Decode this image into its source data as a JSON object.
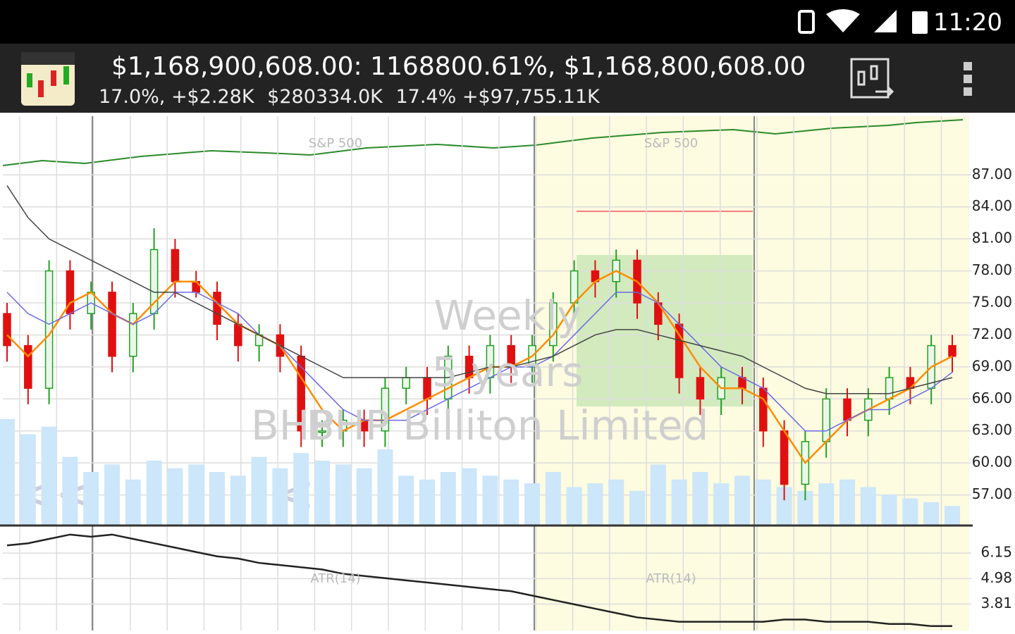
{
  "status_bar": {
    "time": "11:20"
  },
  "header": {
    "title": "$1,168,900,608.00: 1168800.61%, $1,168,800,608.00",
    "stats": [
      "17.0%, +$2.28K",
      "$280334.0K",
      "17.4% +$97,755.11K"
    ]
  },
  "chart_data": [
    {
      "type": "candlestick",
      "annotations": [
        "Weekly",
        "5 years",
        "BHP",
        "BHP Billiton Limited",
        "S&P 500"
      ],
      "open": [
        74,
        71,
        67,
        78,
        74,
        76,
        70,
        74,
        80,
        77,
        76,
        73,
        71,
        72,
        70,
        63,
        63,
        64,
        63,
        67,
        68,
        66,
        70,
        68,
        71,
        69,
        71,
        75,
        78,
        77,
        79,
        75,
        73,
        68,
        66,
        68,
        67,
        63,
        58,
        62,
        66,
        64,
        66,
        68,
        67,
        71
      ],
      "high": [
        75,
        72,
        79,
        79,
        77,
        77,
        75,
        82,
        81,
        78,
        77,
        74,
        73,
        73,
        71,
        64,
        65,
        65,
        68,
        69,
        69,
        71,
        71,
        72,
        72,
        72,
        76,
        79,
        79,
        80,
        80,
        76,
        74,
        69,
        69,
        69,
        68,
        64,
        63,
        67,
        67,
        67,
        69,
        69,
        72,
        72
      ],
      "low": [
        69.5,
        65.5,
        65.5,
        72.5,
        72.5,
        68.5,
        68.5,
        72.5,
        75.5,
        75.5,
        71.5,
        69.5,
        69.5,
        68.5,
        61.5,
        61.5,
        61.5,
        61.5,
        61.5,
        65.5,
        64.5,
        64.5,
        66.5,
        66.5,
        67.5,
        67.5,
        69.5,
        73.5,
        75.5,
        75.5,
        73.5,
        71.5,
        66.5,
        64.5,
        64.5,
        65.5,
        61.5,
        56.5,
        56.5,
        60.5,
        62.5,
        62.5,
        64.5,
        65.5,
        65.5,
        68.5
      ],
      "close": [
        71,
        67,
        78,
        74,
        76,
        70,
        74,
        80,
        77,
        76,
        73,
        71,
        72,
        70,
        63,
        63,
        64,
        63,
        67,
        68,
        66,
        70,
        68,
        71,
        69,
        71,
        75,
        78,
        77,
        79,
        75,
        73,
        68,
        66,
        68,
        67,
        63,
        58,
        62,
        66,
        64,
        66,
        68,
        67,
        71,
        70
      ],
      "volume": [
        140,
        120,
        130,
        90,
        70,
        80,
        60,
        85,
        75,
        80,
        70,
        65,
        90,
        75,
        95,
        85,
        80,
        75,
        100,
        65,
        60,
        70,
        75,
        65,
        60,
        55,
        70,
        50,
        55,
        60,
        45,
        80,
        60,
        70,
        55,
        65,
        60,
        50,
        45,
        55,
        60,
        50,
        40,
        35,
        30,
        25
      ],
      "series": [
        {
          "color": "#ff8c00",
          "values": [
            72,
            70,
            72,
            75,
            76,
            74,
            73,
            75,
            77,
            77,
            75,
            73,
            72,
            71,
            68,
            65,
            63,
            64,
            64,
            65,
            66,
            67,
            68,
            69,
            69,
            70,
            72,
            75,
            77,
            78,
            77,
            75,
            72,
            69,
            67,
            67,
            66,
            63,
            60,
            62,
            64,
            65,
            66,
            67,
            69,
            70
          ]
        },
        {
          "color": "#6a6ae8",
          "values": [
            76,
            74,
            73,
            74,
            75,
            74,
            73,
            74,
            76,
            76,
            75,
            74,
            72,
            71,
            69,
            67,
            65,
            64,
            64,
            64,
            65,
            66,
            67,
            68,
            69,
            69,
            70,
            72,
            74,
            76,
            76,
            75,
            73,
            71,
            69,
            68,
            67,
            65,
            63,
            63,
            64,
            65,
            65,
            66,
            67,
            68.5
          ]
        },
        {
          "color": "#444444",
          "values": [
            86,
            83,
            81,
            80,
            79,
            78,
            77,
            76,
            76,
            75,
            74,
            73,
            72,
            71,
            70,
            69,
            68,
            68,
            68,
            68,
            68,
            68,
            68.5,
            69,
            69,
            69.5,
            70,
            71,
            72,
            72.5,
            72.5,
            72,
            71.5,
            71,
            70.5,
            70,
            69,
            68,
            67,
            66.5,
            66.5,
            66.5,
            66.5,
            67,
            67.5,
            68
          ]
        }
      ],
      "up_color": "#22a022",
      "down_color": "#e01010",
      "ylim": [
        54.2,
        92.5
      ],
      "yticks": [
        {
          "value": 87,
          "label": "87.00"
        },
        {
          "value": 84,
          "label": "84.00"
        },
        {
          "value": 81,
          "label": "81.00"
        },
        {
          "value": 78,
          "label": "78.00"
        },
        {
          "value": 75,
          "label": "75.00"
        },
        {
          "value": 72,
          "label": "72.00"
        },
        {
          "value": 69,
          "label": "69.00"
        },
        {
          "value": 66,
          "label": "66.00"
        },
        {
          "value": 63,
          "label": "63.00"
        },
        {
          "value": 60,
          "label": "60.00"
        },
        {
          "value": 57,
          "label": "57.00"
        }
      ],
      "grid": true
    },
    {
      "type": "line",
      "annotations": [
        "ATR(14)"
      ],
      "series": [
        {
          "color": "#222222",
          "values": [
            6.5,
            6.6,
            6.8,
            7.0,
            6.9,
            7.0,
            6.8,
            6.6,
            6.4,
            6.2,
            6.0,
            5.9,
            5.7,
            5.6,
            5.5,
            5.4,
            5.2,
            5.1,
            5.0,
            4.9,
            4.8,
            4.7,
            4.6,
            4.5,
            4.4,
            4.2,
            4.0,
            3.8,
            3.6,
            3.4,
            3.2,
            3.1,
            3.0,
            3.0,
            3.0,
            3.0,
            3.0,
            3.1,
            3.1,
            3.0,
            3.0,
            3.0,
            2.9,
            2.9,
            2.8,
            2.8
          ]
        }
      ],
      "ylim": [
        2.6,
        7.35
      ],
      "yticks": [
        {
          "value": 6.15,
          "label": "6.15"
        },
        {
          "value": 4.98,
          "label": "4.98"
        },
        {
          "value": 3.81,
          "label": "3.81"
        }
      ],
      "grid": true
    }
  ]
}
